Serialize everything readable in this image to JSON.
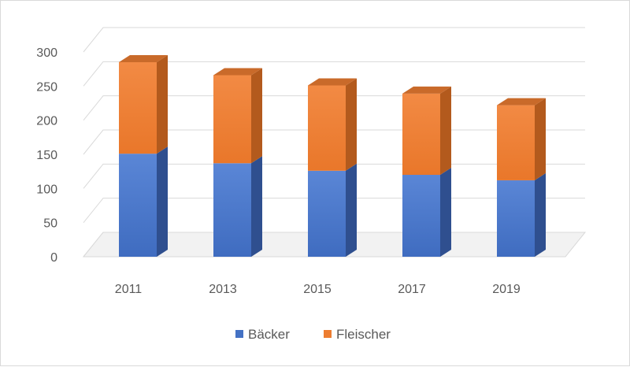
{
  "chart_data": {
    "type": "bar",
    "stacked": true,
    "three_d": true,
    "categories": [
      "2011",
      "2013",
      "2015",
      "2017",
      "2019"
    ],
    "series": [
      {
        "name": "Bäcker",
        "values": [
          151,
          137,
          126,
          120,
          112
        ],
        "color": "#4472C4"
      },
      {
        "name": "Fleischer",
        "values": [
          134,
          129,
          125,
          119,
          110
        ],
        "color": "#ED7D31"
      }
    ],
    "yticks": [
      "0",
      "50",
      "100",
      "150",
      "200",
      "250",
      "300"
    ],
    "ylim": [
      0,
      300
    ],
    "grid": true,
    "legend_position": "bottom"
  }
}
